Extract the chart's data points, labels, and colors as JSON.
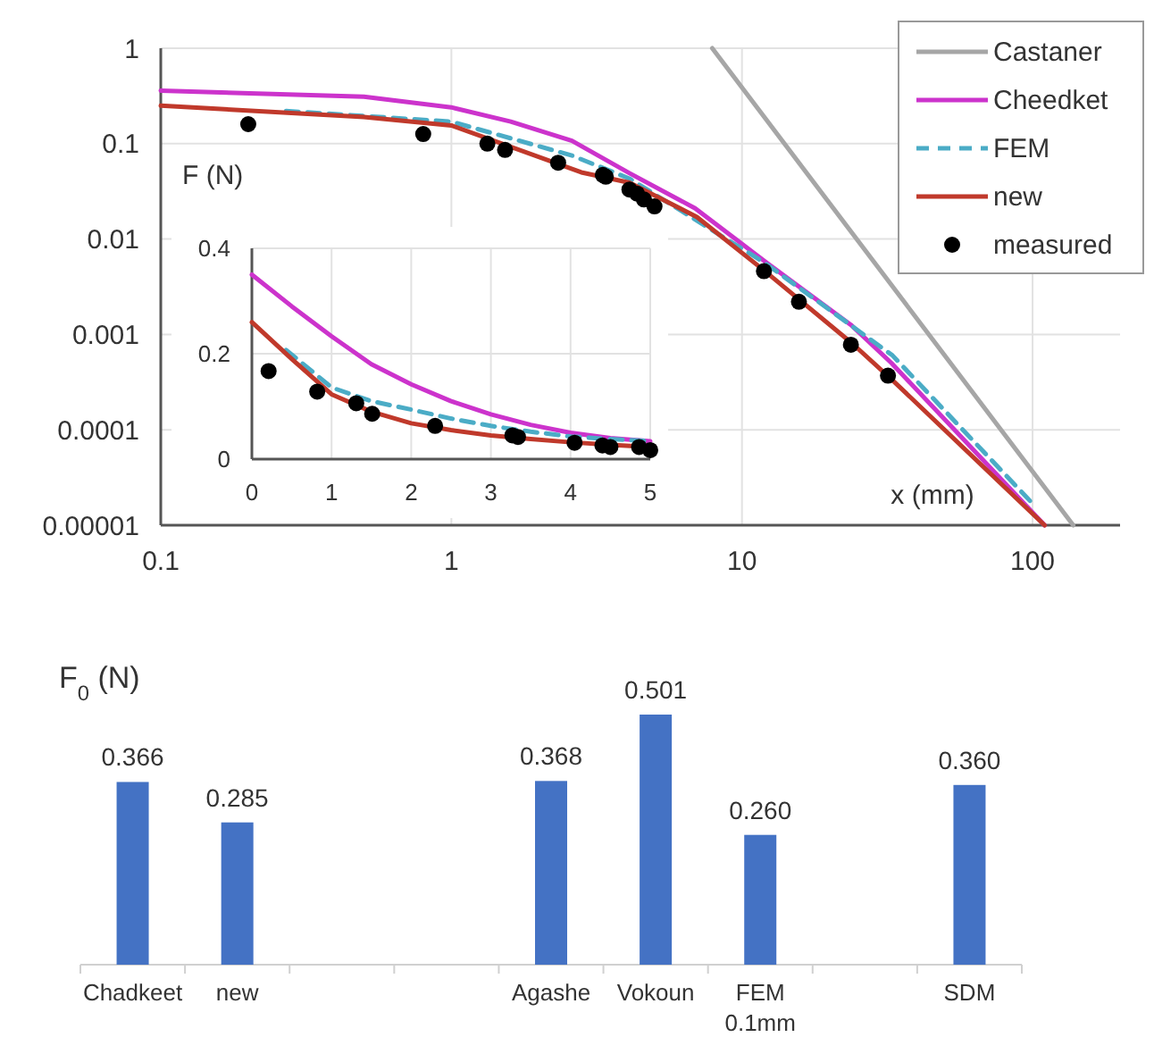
{
  "chart_data": [
    {
      "type": "line",
      "log": "xy",
      "xlabel": "x (mm)",
      "ylabel": "F (N)",
      "xlim": [
        0.1,
        200
      ],
      "ylim": [
        1e-05,
        1
      ],
      "xticks": [
        0.1,
        1,
        10,
        100
      ],
      "yticks": [
        {
          "value": 1e-05,
          "label": "0.00001"
        },
        0.0001,
        0.001,
        0.01,
        0.1,
        1
      ],
      "grid": true,
      "legend": "top right",
      "series": [
        {
          "name": "Castaner",
          "color": "#a6a6a6",
          "x": [
            7.9,
            138
          ],
          "values": [
            1,
            1e-05
          ]
        },
        {
          "name": "Cheedket",
          "color": "#cc33cc",
          "x": [
            0.1,
            0.5,
            1,
            1.6,
            2.6,
            4.1,
            6.9,
            12.2,
            23.7,
            32.7,
            110
          ],
          "values": [
            0.36,
            0.31,
            0.24,
            0.17,
            0.107,
            0.049,
            0.021,
            0.0056,
            0.00126,
            0.0005,
            1e-05
          ]
        },
        {
          "name": "FEM",
          "color": "#4bacc6",
          "line_style": "dashed",
          "x": [
            0.27,
            1,
            2.6,
            4.1,
            12,
            33,
            98
          ],
          "values": [
            0.22,
            0.17,
            0.075,
            0.043,
            0.0056,
            0.0006,
            1.8e-05
          ]
        },
        {
          "name": "new",
          "color": "#c0392b",
          "x": [
            0.1,
            0.5,
            1,
            2.8,
            4.1,
            7,
            12,
            24,
            33,
            110
          ],
          "values": [
            0.25,
            0.19,
            0.155,
            0.05,
            0.039,
            0.017,
            0.0046,
            0.0008,
            0.00033,
            1e-05
          ]
        },
        {
          "name": "measured",
          "type": "scatter",
          "marker": "circle",
          "color": "#000000",
          "x": [
            0.2,
            0.8,
            1.33,
            1.53,
            2.33,
            3.32,
            3.4,
            4.1,
            4.35,
            4.6,
            5.0,
            11.9,
            15.7,
            23.7,
            31.8
          ],
          "values": [
            0.16,
            0.126,
            0.1,
            0.086,
            0.063,
            0.047,
            0.045,
            0.033,
            0.03,
            0.026,
            0.022,
            0.0046,
            0.0022,
            0.00078,
            0.00037
          ]
        }
      ]
    },
    {
      "type": "line",
      "xlim": [
        0,
        5
      ],
      "ylim": [
        0,
        0.4
      ],
      "xticks": [
        0,
        1,
        2,
        3,
        4,
        5
      ],
      "yticks": [
        0,
        0.2,
        0.4
      ],
      "grid": true,
      "series": [
        {
          "color": "#cc33cc",
          "x": [
            0,
            0.5,
            1,
            1.5,
            2,
            2.5,
            3,
            3.5,
            4,
            4.5,
            5
          ],
          "values": [
            0.35,
            0.29,
            0.233,
            0.18,
            0.142,
            0.11,
            0.085,
            0.065,
            0.05,
            0.04,
            0.034
          ]
        },
        {
          "color": "#4bacc6",
          "line_style": "dashed",
          "x": [
            0.43,
            1,
            1.5,
            2,
            2.5,
            3,
            3.5,
            4,
            4.5,
            5
          ],
          "values": [
            0.207,
            0.136,
            0.11,
            0.094,
            0.077,
            0.063,
            0.052,
            0.043,
            0.038,
            0.034
          ]
        },
        {
          "color": "#c0392b",
          "x": [
            0,
            0.5,
            1,
            1.5,
            2,
            2.5,
            3,
            3.5,
            4,
            4.5,
            5
          ],
          "values": [
            0.26,
            0.19,
            0.123,
            0.09,
            0.068,
            0.055,
            0.045,
            0.038,
            0.032,
            0.027,
            0.023
          ]
        },
        {
          "type": "scatter",
          "marker": "circle",
          "color": "#000000",
          "x": [
            0.21,
            0.82,
            1.31,
            1.51,
            2.3,
            3.27,
            3.34,
            4.05,
            4.4,
            4.5,
            4.86,
            5.0
          ],
          "values": [
            0.167,
            0.128,
            0.106,
            0.086,
            0.063,
            0.045,
            0.042,
            0.031,
            0.026,
            0.023,
            0.023,
            0.017
          ]
        }
      ]
    },
    {
      "type": "bar",
      "ylabel": "F$_{0}$ (N)",
      "categories": [
        "Chadkeet",
        "new",
        null,
        null,
        "Agashe",
        "Vokoun",
        "FEM 0.1mm",
        null,
        "SDM"
      ],
      "values": [
        0.366,
        0.285,
        null,
        null,
        0.368,
        0.501,
        0.26,
        null,
        0.36
      ],
      "color": "#4472c4",
      "value_labels": [
        "0.366",
        "0.285",
        null,
        null,
        "0.368",
        "0.501",
        "0.260",
        null,
        "0.360"
      ]
    }
  ]
}
